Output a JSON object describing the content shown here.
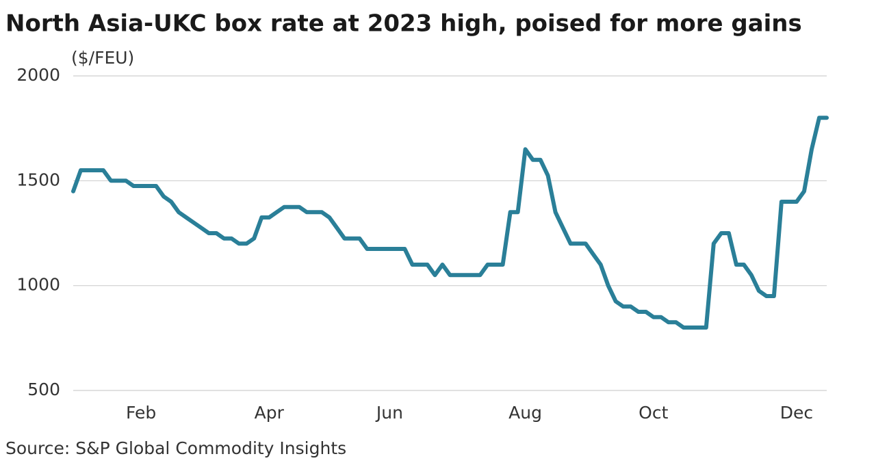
{
  "chart_data": {
    "type": "line",
    "title": "North Asia-UKC box rate at 2023 high, poised for more gains",
    "y_label": "($/FEU)",
    "source": "Source: S&P Global Commodity Insights",
    "color": "#2a7f98",
    "grid": true,
    "ylim": [
      500,
      2000
    ],
    "yticks": [
      500,
      1000,
      1500,
      2000
    ],
    "categories": [
      null,
      null,
      null,
      null,
      null,
      null,
      null,
      null,
      null,
      "Feb",
      null,
      null,
      null,
      null,
      null,
      null,
      null,
      null,
      null,
      null,
      null,
      null,
      null,
      null,
      null,
      null,
      "Apr",
      null,
      null,
      null,
      null,
      null,
      null,
      null,
      null,
      null,
      null,
      null,
      null,
      null,
      null,
      null,
      "Jun",
      null,
      null,
      null,
      null,
      null,
      null,
      null,
      null,
      null,
      null,
      null,
      null,
      null,
      null,
      null,
      null,
      null,
      "Aug",
      null,
      null,
      null,
      null,
      null,
      null,
      null,
      null,
      null,
      null,
      null,
      null,
      null,
      null,
      null,
      null,
      "Oct",
      null,
      null,
      null,
      null,
      null,
      null,
      null,
      null,
      null,
      null,
      null,
      null,
      null,
      null,
      null,
      null,
      null,
      null,
      "Dec",
      null,
      null,
      null,
      null
    ],
    "values": [
      1450,
      1550,
      1550,
      1550,
      1550,
      1500,
      1500,
      1500,
      1475,
      1475,
      1475,
      1475,
      1425,
      1400,
      1350,
      1325,
      1300,
      1275,
      1250,
      1250,
      1225,
      1225,
      1200,
      1200,
      1225,
      1325,
      1325,
      1350,
      1375,
      1375,
      1375,
      1350,
      1350,
      1350,
      1325,
      1275,
      1225,
      1225,
      1225,
      1175,
      1175,
      1175,
      1175,
      1175,
      1175,
      1100,
      1100,
      1100,
      1050,
      1100,
      1050,
      1050,
      1050,
      1050,
      1050,
      1100,
      1100,
      1100,
      1350,
      1350,
      1650,
      1600,
      1600,
      1525,
      1350,
      1275,
      1200,
      1200,
      1200,
      1150,
      1100,
      1000,
      925,
      900,
      900,
      875,
      875,
      850,
      850,
      825,
      825,
      800,
      800,
      800,
      800,
      1200,
      1250,
      1250,
      1100,
      1100,
      1050,
      975,
      950,
      950,
      1400,
      1400,
      1400,
      1450,
      1650,
      1800,
      1800
    ]
  }
}
